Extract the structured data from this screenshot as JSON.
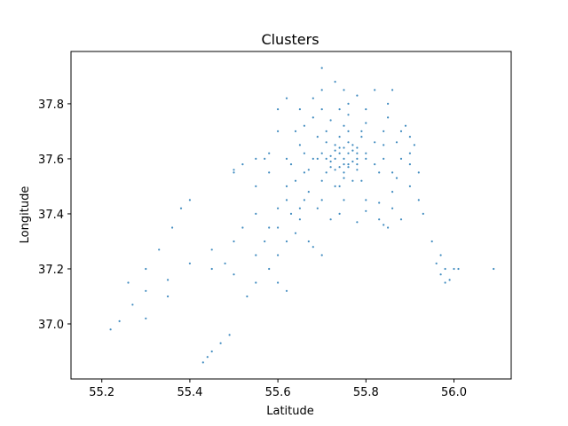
{
  "chart_data": {
    "type": "scatter",
    "title": "Clusters",
    "xlabel": "Latitude",
    "ylabel": "Longitude",
    "xlim": [
      55.13,
      56.13
    ],
    "ylim": [
      36.8,
      37.99
    ],
    "xticks": [
      55.2,
      55.4,
      55.6,
      55.8,
      56.0
    ],
    "xtick_labels": [
      "55.2",
      "55.4",
      "55.6",
      "55.8",
      "56.0"
    ],
    "yticks": [
      37.0,
      37.2,
      37.4,
      37.6,
      37.8
    ],
    "ytick_labels": [
      "37.0",
      "37.2",
      "37.4",
      "37.6",
      "37.8"
    ],
    "grid": false,
    "marker_color": "#1f77b4",
    "series": [
      {
        "points": [
          [
            55.75,
            37.6
          ],
          [
            55.74,
            37.62
          ],
          [
            55.76,
            37.58
          ],
          [
            55.73,
            37.63
          ],
          [
            55.77,
            37.65
          ],
          [
            55.72,
            37.57
          ],
          [
            55.78,
            37.6
          ],
          [
            55.75,
            37.55
          ],
          [
            55.74,
            37.68
          ],
          [
            55.7,
            37.62
          ],
          [
            55.8,
            37.62
          ],
          [
            55.76,
            37.7
          ],
          [
            55.73,
            37.5
          ],
          [
            55.68,
            37.6
          ],
          [
            55.82,
            37.58
          ],
          [
            55.77,
            37.52
          ],
          [
            55.71,
            37.7
          ],
          [
            55.79,
            37.68
          ],
          [
            55.66,
            37.55
          ],
          [
            55.84,
            37.65
          ],
          [
            55.75,
            37.45
          ],
          [
            55.74,
            37.78
          ],
          [
            55.65,
            37.65
          ],
          [
            55.86,
            37.55
          ],
          [
            55.7,
            37.45
          ],
          [
            55.8,
            37.45
          ],
          [
            55.7,
            37.78
          ],
          [
            55.8,
            37.78
          ],
          [
            55.62,
            37.6
          ],
          [
            55.88,
            37.6
          ],
          [
            55.58,
            37.62
          ],
          [
            55.9,
            37.62
          ],
          [
            55.6,
            37.7
          ],
          [
            55.9,
            37.5
          ],
          [
            55.62,
            37.5
          ],
          [
            55.88,
            37.7
          ],
          [
            55.65,
            37.78
          ],
          [
            55.85,
            37.8
          ],
          [
            55.65,
            37.42
          ],
          [
            55.86,
            37.42
          ],
          [
            55.72,
            37.38
          ],
          [
            55.78,
            37.37
          ],
          [
            55.83,
            37.38
          ],
          [
            55.68,
            37.82
          ],
          [
            55.78,
            37.83
          ],
          [
            55.7,
            37.85
          ],
          [
            55.73,
            37.88
          ],
          [
            55.7,
            37.93
          ],
          [
            55.58,
            37.55
          ],
          [
            55.92,
            37.55
          ],
          [
            55.6,
            37.42
          ],
          [
            55.62,
            37.45
          ],
          [
            55.55,
            37.5
          ],
          [
            55.5,
            37.55
          ],
          [
            55.55,
            37.4
          ],
          [
            55.52,
            37.35
          ],
          [
            55.58,
            37.35
          ],
          [
            55.62,
            37.3
          ],
          [
            55.65,
            37.38
          ],
          [
            55.6,
            37.25
          ],
          [
            55.58,
            37.2
          ],
          [
            55.6,
            37.15
          ],
          [
            55.62,
            37.12
          ],
          [
            55.55,
            37.25
          ],
          [
            55.5,
            37.3
          ],
          [
            55.45,
            37.27
          ],
          [
            55.4,
            37.22
          ],
          [
            55.35,
            37.16
          ],
          [
            55.3,
            37.12
          ],
          [
            55.27,
            37.07
          ],
          [
            55.24,
            37.01
          ],
          [
            55.22,
            36.98
          ],
          [
            55.3,
            37.2
          ],
          [
            55.33,
            37.27
          ],
          [
            55.36,
            37.35
          ],
          [
            55.38,
            37.42
          ],
          [
            55.4,
            37.45
          ],
          [
            55.35,
            37.1
          ],
          [
            55.3,
            37.02
          ],
          [
            55.26,
            37.15
          ],
          [
            55.45,
            36.9
          ],
          [
            55.47,
            36.93
          ],
          [
            55.49,
            36.96
          ],
          [
            55.44,
            36.88
          ],
          [
            55.43,
            36.86
          ],
          [
            55.5,
            37.18
          ],
          [
            55.55,
            37.15
          ],
          [
            55.48,
            37.22
          ],
          [
            55.45,
            37.2
          ],
          [
            55.53,
            37.1
          ],
          [
            55.97,
            37.25
          ],
          [
            55.98,
            37.2
          ],
          [
            56.0,
            37.2
          ],
          [
            55.99,
            37.16
          ],
          [
            55.97,
            37.18
          ],
          [
            56.01,
            37.2
          ],
          [
            55.98,
            37.15
          ],
          [
            55.96,
            37.22
          ],
          [
            56.09,
            37.2
          ],
          [
            55.95,
            37.3
          ],
          [
            55.93,
            37.4
          ],
          [
            55.92,
            37.45
          ],
          [
            55.88,
            37.38
          ],
          [
            55.85,
            37.35
          ],
          [
            55.84,
            37.36
          ],
          [
            55.9,
            37.58
          ],
          [
            55.89,
            37.72
          ],
          [
            55.85,
            37.75
          ],
          [
            55.66,
            37.72
          ],
          [
            55.68,
            37.75
          ],
          [
            55.64,
            37.7
          ],
          [
            55.63,
            37.58
          ],
          [
            55.64,
            37.52
          ],
          [
            55.67,
            37.48
          ],
          [
            55.69,
            37.42
          ],
          [
            55.74,
            37.4
          ],
          [
            55.8,
            37.41
          ],
          [
            55.83,
            37.44
          ],
          [
            55.86,
            37.48
          ],
          [
            55.87,
            37.53
          ],
          [
            55.87,
            37.66
          ],
          [
            55.84,
            37.7
          ],
          [
            55.8,
            37.73
          ],
          [
            55.76,
            37.76
          ],
          [
            55.72,
            37.74
          ],
          [
            55.69,
            37.68
          ],
          [
            55.66,
            37.62
          ],
          [
            55.67,
            37.56
          ],
          [
            55.7,
            37.52
          ],
          [
            55.74,
            37.5
          ],
          [
            55.79,
            37.52
          ],
          [
            55.83,
            37.55
          ],
          [
            55.84,
            37.6
          ],
          [
            55.82,
            37.66
          ],
          [
            55.79,
            37.7
          ],
          [
            55.75,
            37.72
          ],
          [
            55.71,
            37.66
          ],
          [
            55.69,
            37.6
          ],
          [
            55.71,
            37.55
          ],
          [
            55.75,
            37.53
          ],
          [
            55.78,
            37.56
          ],
          [
            55.8,
            37.6
          ],
          [
            55.78,
            37.64
          ],
          [
            55.76,
            37.66
          ],
          [
            55.73,
            37.65
          ],
          [
            55.71,
            37.6
          ],
          [
            55.73,
            37.56
          ],
          [
            55.76,
            37.57
          ],
          [
            55.78,
            37.62
          ],
          [
            55.75,
            37.64
          ],
          [
            55.72,
            37.61
          ],
          [
            55.77,
            37.59
          ],
          [
            55.74,
            37.57
          ],
          [
            55.76,
            37.62
          ],
          [
            55.73,
            37.6
          ],
          [
            55.75,
            37.58
          ],
          [
            55.74,
            37.64
          ],
          [
            55.77,
            37.63
          ],
          [
            55.72,
            37.59
          ],
          [
            55.78,
            37.58
          ],
          [
            55.66,
            37.45
          ],
          [
            55.63,
            37.4
          ],
          [
            55.6,
            37.35
          ],
          [
            55.57,
            37.3
          ],
          [
            55.64,
            37.33
          ],
          [
            55.67,
            37.3
          ],
          [
            55.7,
            37.25
          ],
          [
            55.68,
            37.28
          ],
          [
            55.86,
            37.85
          ],
          [
            55.82,
            37.85
          ],
          [
            55.75,
            37.85
          ],
          [
            55.76,
            37.8
          ],
          [
            55.62,
            37.82
          ],
          [
            55.6,
            37.78
          ],
          [
            55.57,
            37.6
          ],
          [
            55.55,
            37.6
          ],
          [
            55.52,
            37.58
          ],
          [
            55.5,
            37.56
          ],
          [
            55.9,
            37.68
          ],
          [
            55.91,
            37.65
          ]
        ]
      }
    ]
  }
}
